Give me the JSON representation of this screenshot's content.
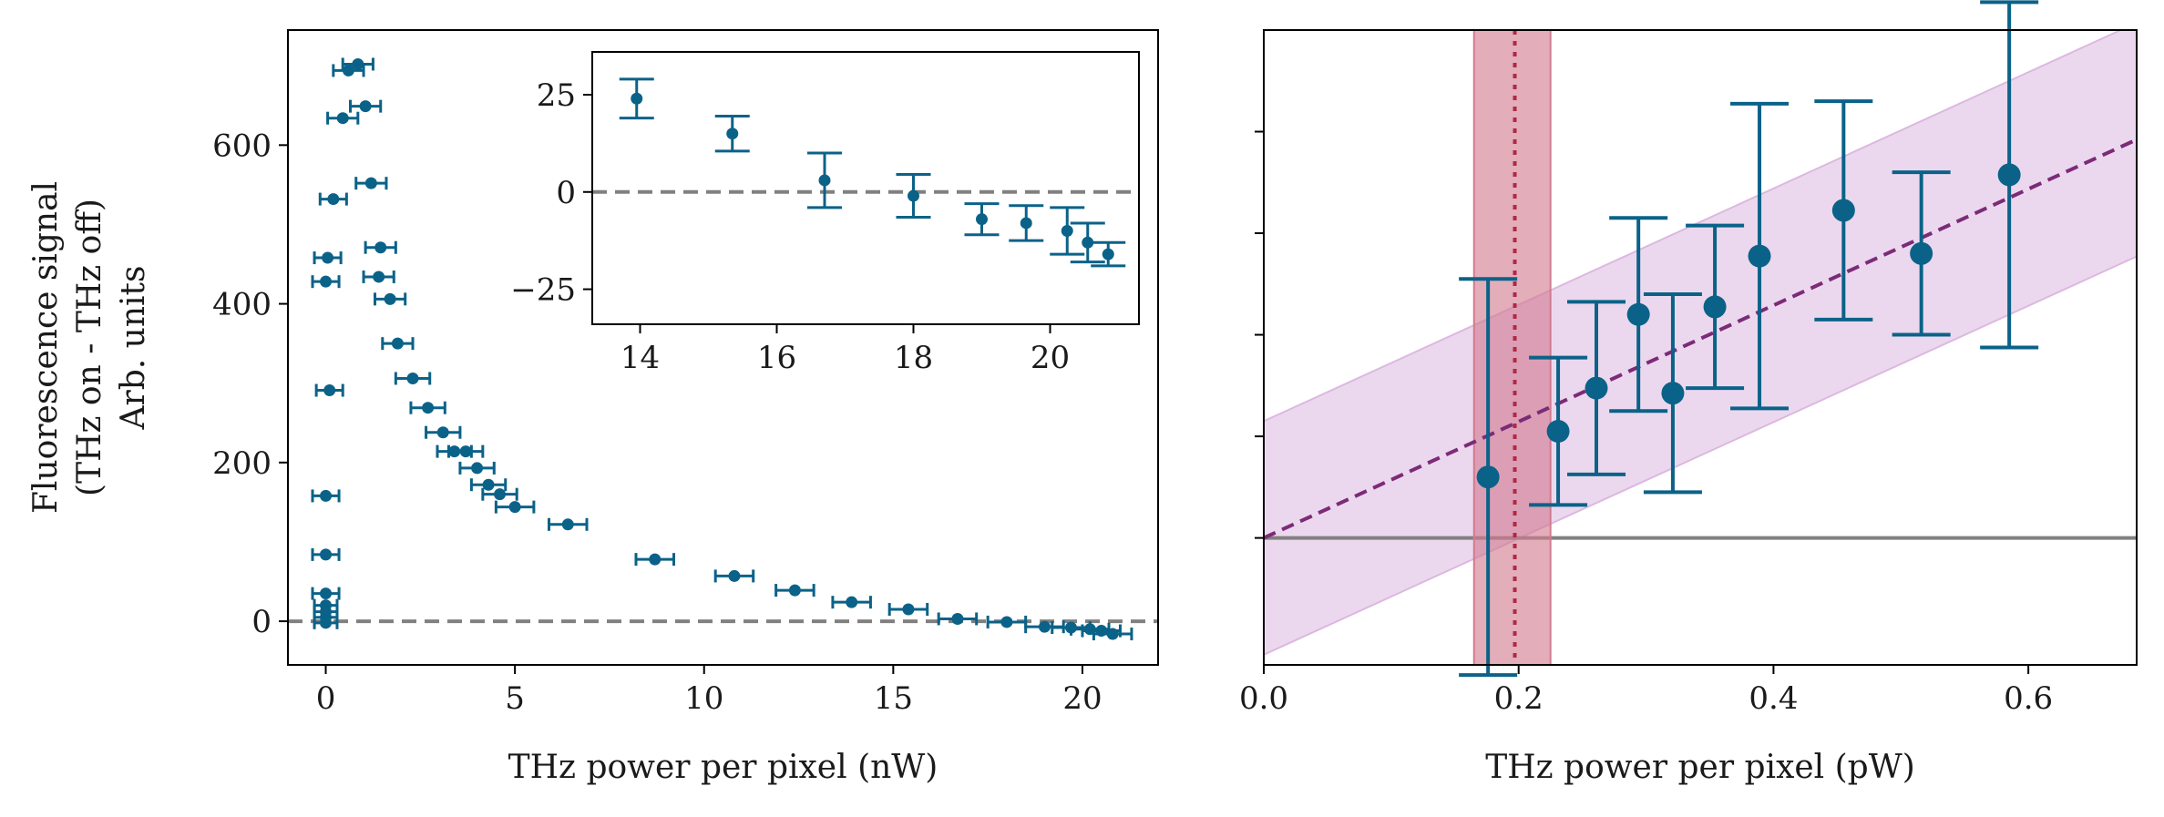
{
  "colors": {
    "marker": "#0b6288",
    "zero_line": "#808080",
    "fit_line": "#7c2b78",
    "fit_band": "#dcb8e0",
    "threshold_band": "#d27a90",
    "threshold_line": "#b02845",
    "axes": "#000000"
  },
  "chart_data": [
    {
      "type": "scatter",
      "panel": "left-main",
      "ylabel_lines": [
        "Fluorescence signal",
        "(THz on - THz off)",
        "Arb. units"
      ],
      "xlabel": "THz power per pixel (nW)",
      "xlim": [
        -1,
        22
      ],
      "ylim": [
        -55,
        745
      ],
      "xticks": [
        0,
        5,
        10,
        15,
        20
      ],
      "xtick_labels": [
        "0",
        "5",
        "10",
        "15",
        "20"
      ],
      "yticks": [
        0,
        200,
        400,
        600
      ],
      "ytick_labels": [
        "0",
        "200",
        "400",
        "600"
      ],
      "reference_line_y": 0,
      "points": [
        {
          "x": 0.0,
          "y": -2,
          "xerr": 0.3
        },
        {
          "x": 0.0,
          "y": 5,
          "xerr": 0.3
        },
        {
          "x": 0.0,
          "y": 12,
          "xerr": 0.3
        },
        {
          "x": 0.0,
          "y": 20,
          "xerr": 0.3
        },
        {
          "x": 0.0,
          "y": 35,
          "xerr": 0.35
        },
        {
          "x": 0.0,
          "y": 84,
          "xerr": 0.35
        },
        {
          "x": 0.0,
          "y": 158,
          "xerr": 0.35
        },
        {
          "x": 0.1,
          "y": 291,
          "xerr": 0.35
        },
        {
          "x": 0.0,
          "y": 428,
          "xerr": 0.35
        },
        {
          "x": 0.05,
          "y": 458,
          "xerr": 0.35
        },
        {
          "x": 0.2,
          "y": 532,
          "xerr": 0.35
        },
        {
          "x": 0.45,
          "y": 634,
          "xerr": 0.4
        },
        {
          "x": 0.6,
          "y": 694,
          "xerr": 0.4
        },
        {
          "x": 0.85,
          "y": 702,
          "xerr": 0.4
        },
        {
          "x": 1.05,
          "y": 649,
          "xerr": 0.4
        },
        {
          "x": 1.2,
          "y": 552,
          "xerr": 0.4
        },
        {
          "x": 1.45,
          "y": 471,
          "xerr": 0.4
        },
        {
          "x": 1.4,
          "y": 434,
          "xerr": 0.4
        },
        {
          "x": 1.7,
          "y": 406,
          "xerr": 0.4
        },
        {
          "x": 1.9,
          "y": 350,
          "xerr": 0.4
        },
        {
          "x": 2.3,
          "y": 306,
          "xerr": 0.45
        },
        {
          "x": 2.7,
          "y": 269,
          "xerr": 0.45
        },
        {
          "x": 3.1,
          "y": 238,
          "xerr": 0.45
        },
        {
          "x": 3.4,
          "y": 214,
          "xerr": 0.45
        },
        {
          "x": 3.7,
          "y": 214,
          "xerr": 0.45
        },
        {
          "x": 4.0,
          "y": 193,
          "xerr": 0.45
        },
        {
          "x": 4.3,
          "y": 172,
          "xerr": 0.45
        },
        {
          "x": 4.6,
          "y": 160,
          "xerr": 0.45
        },
        {
          "x": 5.0,
          "y": 144,
          "xerr": 0.5
        },
        {
          "x": 6.4,
          "y": 122,
          "xerr": 0.5
        },
        {
          "x": 8.7,
          "y": 78,
          "xerr": 0.5
        },
        {
          "x": 10.8,
          "y": 57,
          "xerr": 0.5
        },
        {
          "x": 12.4,
          "y": 39,
          "xerr": 0.5
        },
        {
          "x": 13.9,
          "y": 24,
          "xerr": 0.5
        },
        {
          "x": 15.4,
          "y": 15,
          "xerr": 0.5
        },
        {
          "x": 16.7,
          "y": 3,
          "xerr": 0.5
        },
        {
          "x": 18.0,
          "y": -1,
          "xerr": 0.5
        },
        {
          "x": 19.0,
          "y": -7,
          "xerr": 0.5
        },
        {
          "x": 19.7,
          "y": -8,
          "xerr": 0.5
        },
        {
          "x": 20.2,
          "y": -10,
          "xerr": 0.5
        },
        {
          "x": 20.5,
          "y": -12,
          "xerr": 0.5
        },
        {
          "x": 20.8,
          "y": -16,
          "xerr": 0.5
        }
      ]
    },
    {
      "type": "scatter",
      "panel": "left-inset",
      "xlim": [
        13.3,
        21.3
      ],
      "ylim": [
        -34,
        36
      ],
      "xticks": [
        14,
        16,
        18,
        20
      ],
      "xtick_labels": [
        "14",
        "16",
        "18",
        "20"
      ],
      "yticks": [
        -25,
        0,
        25
      ],
      "ytick_labels": [
        "−25",
        "0",
        "25"
      ],
      "reference_line_y": 0,
      "points": [
        {
          "x": 13.95,
          "y": 24,
          "yerr": 5
        },
        {
          "x": 15.35,
          "y": 15,
          "yerr": 4.5
        },
        {
          "x": 16.7,
          "y": 3,
          "yerr": 7
        },
        {
          "x": 18.0,
          "y": -1,
          "yerr": 5.5
        },
        {
          "x": 19.0,
          "y": -7,
          "yerr": 4
        },
        {
          "x": 19.65,
          "y": -8,
          "yerr": 4.5
        },
        {
          "x": 20.25,
          "y": -10,
          "yerr": 6
        },
        {
          "x": 20.55,
          "y": -13,
          "yerr": 5
        },
        {
          "x": 20.85,
          "y": -16,
          "yerr": 3
        }
      ]
    },
    {
      "type": "scatter",
      "panel": "right",
      "xlabel": "THz power per pixel (pW)",
      "xlim": [
        0,
        0.685
      ],
      "ylim": [
        -50,
        200
      ],
      "xticks": [
        0.0,
        0.2,
        0.4,
        0.6
      ],
      "xtick_labels": [
        "0.0",
        "0.2",
        "0.4",
        "0.6"
      ],
      "ytick_positions": [
        0,
        40,
        80,
        120,
        160
      ],
      "reference_line_y": 0,
      "fit": {
        "intercept": 0,
        "slope": 229,
        "band_halfwidth": 46
      },
      "threshold": {
        "center": 0.197,
        "low": 0.165,
        "high": 0.225
      },
      "points": [
        {
          "x": 0.176,
          "y": 24,
          "yerr": 78
        },
        {
          "x": 0.231,
          "y": 42,
          "yerr": 29
        },
        {
          "x": 0.261,
          "y": 59,
          "yerr": 34
        },
        {
          "x": 0.294,
          "y": 88,
          "yerr": 38
        },
        {
          "x": 0.321,
          "y": 57,
          "yerr": 39
        },
        {
          "x": 0.354,
          "y": 91,
          "yerr": 32
        },
        {
          "x": 0.389,
          "y": 111,
          "yerr": 60
        },
        {
          "x": 0.455,
          "y": 129,
          "yerr": 43
        },
        {
          "x": 0.516,
          "y": 112,
          "yerr": 32
        },
        {
          "x": 0.585,
          "y": 143,
          "yerr": 68
        }
      ]
    }
  ]
}
